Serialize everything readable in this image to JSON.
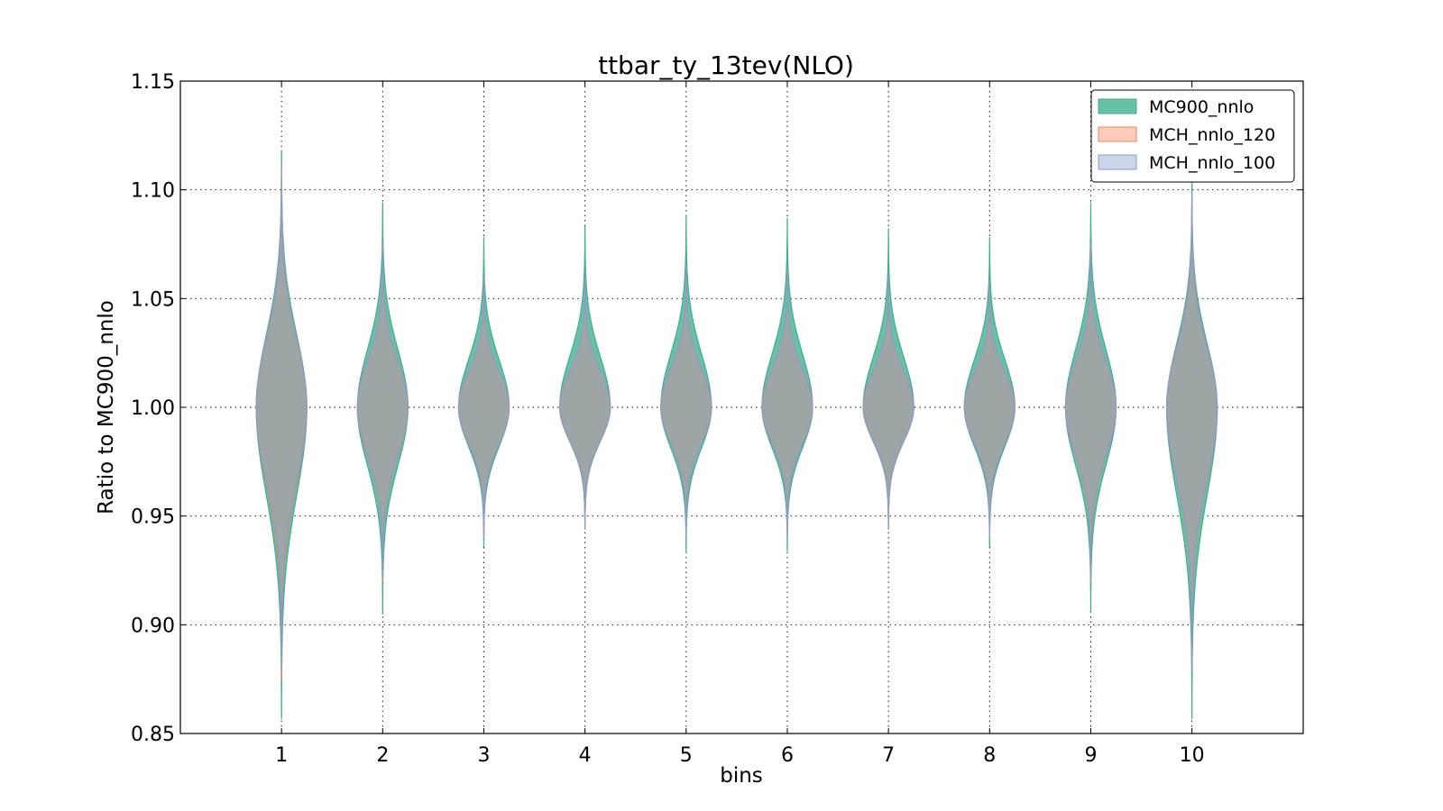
{
  "chart_data": {
    "type": "violin",
    "title": "ttbar_ty_13tev(NLO)",
    "xlabel": "bins",
    "ylabel": "Ratio to MC900_nnlo",
    "categories": [
      "1",
      "2",
      "3",
      "4",
      "5",
      "6",
      "7",
      "8",
      "9",
      "10"
    ],
    "xlim": [
      0,
      11.1
    ],
    "ylim": [
      0.85,
      1.15
    ],
    "yticks": [
      "0.85",
      "0.90",
      "0.95",
      "1.00",
      "1.05",
      "1.10",
      "1.15"
    ],
    "grid": true,
    "legend_position": "top-right",
    "series": [
      {
        "name": "MC900_nnlo",
        "fill": "#66c2a5",
        "stroke": "#3fae8a",
        "ranges": [
          [
            0.857,
            1.118
          ],
          [
            0.905,
            1.094
          ],
          [
            0.936,
            1.078
          ],
          [
            0.944,
            1.083
          ],
          [
            0.933,
            1.088
          ],
          [
            0.934,
            1.087
          ],
          [
            0.944,
            1.082
          ],
          [
            0.936,
            1.078
          ],
          [
            0.906,
            1.094
          ],
          [
            0.857,
            1.104
          ]
        ],
        "half_width_at_1": [
          0.25,
          0.25,
          0.25,
          0.25,
          0.25,
          0.25,
          0.25,
          0.25,
          0.25,
          0.25
        ]
      },
      {
        "name": "MCH_nnlo_120",
        "fill": "#fc8d62",
        "stroke": "#f0845b",
        "ranges": [
          [
            0.875,
            1.112
          ],
          [
            0.92,
            1.075
          ],
          [
            0.94,
            1.06
          ],
          [
            0.945,
            1.06
          ],
          [
            0.94,
            1.065
          ],
          [
            0.94,
            1.063
          ],
          [
            0.945,
            1.06
          ],
          [
            0.94,
            1.058
          ],
          [
            0.92,
            1.075
          ],
          [
            0.88,
            1.098
          ]
        ],
        "half_width_at_1": [
          0.25,
          0.25,
          0.25,
          0.25,
          0.25,
          0.25,
          0.25,
          0.25,
          0.25,
          0.25
        ]
      },
      {
        "name": "MCH_nnlo_100",
        "fill": "#8da0cb",
        "stroke": "#8a9ccc",
        "ranges": [
          [
            0.88,
            1.112
          ],
          [
            0.922,
            1.075
          ],
          [
            0.94,
            1.06
          ],
          [
            0.945,
            1.06
          ],
          [
            0.94,
            1.065
          ],
          [
            0.94,
            1.063
          ],
          [
            0.945,
            1.06
          ],
          [
            0.94,
            1.058
          ],
          [
            0.922,
            1.075
          ],
          [
            0.882,
            1.098
          ]
        ],
        "half_width_at_1": [
          0.25,
          0.25,
          0.25,
          0.25,
          0.25,
          0.25,
          0.25,
          0.25,
          0.25,
          0.25
        ]
      }
    ]
  }
}
